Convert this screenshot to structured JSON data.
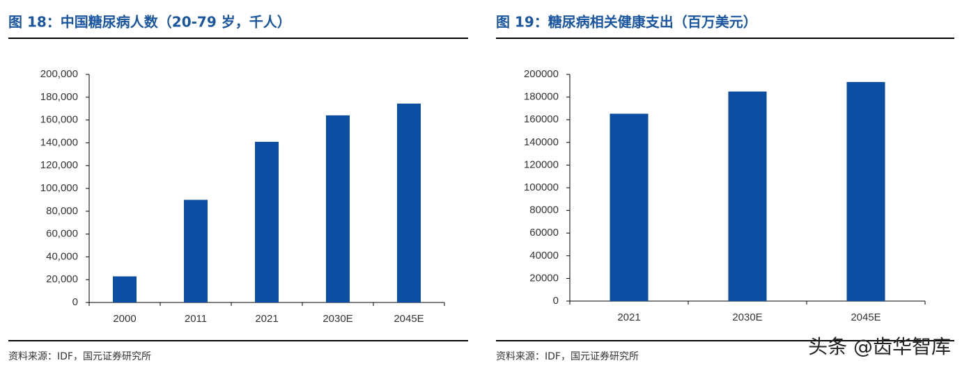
{
  "chart_data": [
    {
      "type": "bar",
      "title": "图 18：中国糖尿病人数（20-79 岁，千人）",
      "categories": [
        "2000",
        "2011",
        "2021",
        "2030E",
        "2045E"
      ],
      "values": [
        22900,
        90000,
        140900,
        164100,
        174400
      ],
      "color": "#0b4ea2",
      "ylim": [
        0,
        200000
      ],
      "yticks": [
        0,
        {
          "value": 20000,
          "label": "20,000"
        },
        {
          "value": 40000,
          "label": "40,000"
        },
        {
          "value": 60000,
          "label": "60,000"
        },
        {
          "value": 80000,
          "label": "80,000"
        },
        {
          "value": 100000,
          "label": "100,000"
        },
        {
          "value": 120000,
          "label": "120,000"
        },
        {
          "value": 140000,
          "label": "140,000"
        },
        {
          "value": 160000,
          "label": "160,000"
        },
        {
          "value": 180000,
          "label": "180,000"
        },
        {
          "value": 200000,
          "label": "200,000"
        }
      ],
      "grid": false,
      "source": "资料来源：IDF，国元证券研究所"
    },
    {
      "type": "bar",
      "title": "图 19：糖尿病相关健康支出（百万美元）",
      "categories": [
        "2021",
        "2030E",
        "2045E"
      ],
      "values": [
        165300,
        184900,
        193300
      ],
      "color": "#0b4ea2",
      "ylim": [
        0,
        200000
      ],
      "yticks": [
        0,
        20000,
        40000,
        60000,
        80000,
        100000,
        120000,
        140000,
        160000,
        180000,
        200000
      ],
      "grid": false,
      "source": "资料来源：IDF，国元证券研究所"
    }
  ],
  "watermark": "头条 @齿华智库"
}
